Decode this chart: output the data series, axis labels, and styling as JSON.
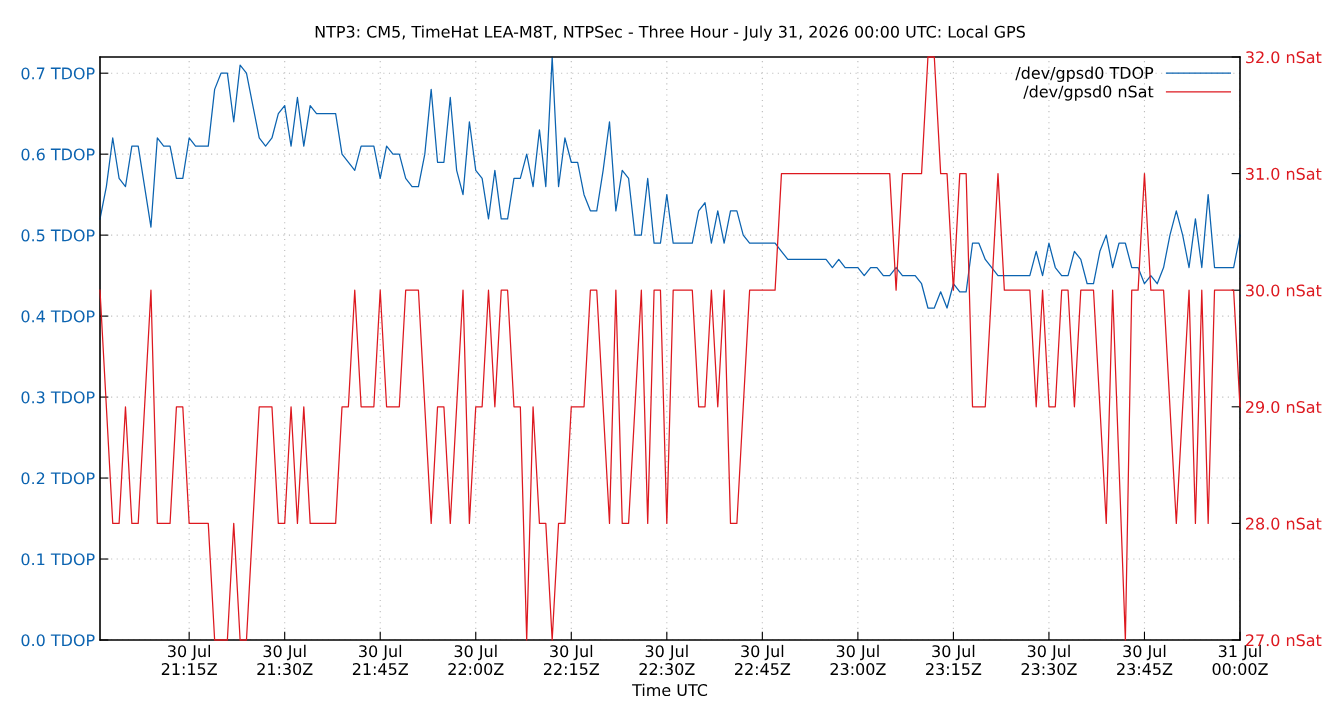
{
  "chart_data": {
    "type": "line",
    "title": "NTP3: CM5, TimeHat LEA-M8T, NTPSec - Three Hour - July 31, 2026 00:00 UTC: Local GPS",
    "xlabel": "Time UTC",
    "xlim": [
      "2026-07-30T21:01",
      "2026-07-31T00:00"
    ],
    "xticks": [
      {
        "value": "2026-07-30T21:15",
        "label": "30 Jul\n21:15Z"
      },
      {
        "value": "2026-07-30T21:30",
        "label": "30 Jul\n21:30Z"
      },
      {
        "value": "2026-07-30T21:45",
        "label": "30 Jul\n21:45Z"
      },
      {
        "value": "2026-07-30T22:00",
        "label": "30 Jul\n22:00Z"
      },
      {
        "value": "2026-07-30T22:15",
        "label": "30 Jul\n22:15Z"
      },
      {
        "value": "2026-07-30T22:30",
        "label": "30 Jul\n22:30Z"
      },
      {
        "value": "2026-07-30T22:45",
        "label": "30 Jul\n22:45Z"
      },
      {
        "value": "2026-07-30T23:00",
        "label": "30 Jul\n23:00Z"
      },
      {
        "value": "2026-07-30T23:15",
        "label": "30 Jul\n23:15Z"
      },
      {
        "value": "2026-07-30T23:30",
        "label": "30 Jul\n23:30Z"
      },
      {
        "value": "2026-07-30T23:45",
        "label": "30 Jul\n23:45Z"
      },
      {
        "value": "2026-07-31T00:00",
        "label": "31 Jul\n00:00Z"
      }
    ],
    "ylim": [
      0,
      0.72
    ],
    "yticks": [
      {
        "value": 0,
        "label": "0.0 TDOP"
      },
      {
        "value": 0.1,
        "label": "0.1 TDOP"
      },
      {
        "value": 0.2,
        "label": "0.2 TDOP"
      },
      {
        "value": 0.3,
        "label": "0.3 TDOP"
      },
      {
        "value": 0.4,
        "label": "0.4 TDOP"
      },
      {
        "value": 0.5,
        "label": "0.5 TDOP"
      },
      {
        "value": 0.6,
        "label": "0.6 TDOP"
      },
      {
        "value": 0.7,
        "label": "0.7 TDOP"
      }
    ],
    "y2lim": [
      27,
      32
    ],
    "y2ticks": [
      {
        "value": 27,
        "label": "27.0 nSat"
      },
      {
        "value": 28,
        "label": "28.0 nSat"
      },
      {
        "value": 29,
        "label": "29.0 nSat"
      },
      {
        "value": 30,
        "label": "30.0 nSat"
      },
      {
        "value": 31,
        "label": "31.0 nSat"
      },
      {
        "value": 32,
        "label": "32.0 nSat"
      }
    ],
    "grid": true,
    "legend": "top right",
    "marker": "none",
    "line_style": "solid",
    "series": [
      {
        "name": "/dev/gpsd0 TDOP",
        "color": "#0b63b0",
        "x": [
          "2026-07-30T21:01",
          "2026-07-30T21:02",
          "2026-07-30T21:03",
          "2026-07-30T21:04",
          "2026-07-30T21:05",
          "2026-07-30T21:06",
          "2026-07-30T21:07",
          "2026-07-30T21:09",
          "2026-07-30T21:10",
          "2026-07-30T21:11",
          "2026-07-30T21:12",
          "2026-07-30T21:13",
          "2026-07-30T21:14",
          "2026-07-30T21:15",
          "2026-07-30T21:16",
          "2026-07-30T21:18",
          "2026-07-30T21:19",
          "2026-07-30T21:20",
          "2026-07-30T21:21",
          "2026-07-30T21:22",
          "2026-07-30T21:23",
          "2026-07-30T21:24",
          "2026-07-30T21:25",
          "2026-07-30T21:26",
          "2026-07-30T21:27",
          "2026-07-30T21:28",
          "2026-07-30T21:29",
          "2026-07-30T21:30",
          "2026-07-30T21:31",
          "2026-07-30T21:32",
          "2026-07-30T21:33",
          "2026-07-30T21:34",
          "2026-07-30T21:35",
          "2026-07-30T21:38",
          "2026-07-30T21:39",
          "2026-07-30T21:41",
          "2026-07-30T21:42",
          "2026-07-30T21:44",
          "2026-07-30T21:45",
          "2026-07-30T21:46",
          "2026-07-30T21:47",
          "2026-07-30T21:48",
          "2026-07-30T21:49",
          "2026-07-30T21:50",
          "2026-07-30T21:51",
          "2026-07-30T21:52",
          "2026-07-30T21:53",
          "2026-07-30T21:54",
          "2026-07-30T21:55",
          "2026-07-30T21:56",
          "2026-07-30T21:57",
          "2026-07-30T21:58",
          "2026-07-30T21:59",
          "2026-07-30T22:00",
          "2026-07-30T22:01",
          "2026-07-30T22:02",
          "2026-07-30T22:03",
          "2026-07-30T22:04",
          "2026-07-30T22:05",
          "2026-07-30T22:06",
          "2026-07-30T22:07",
          "2026-07-30T22:08",
          "2026-07-30T22:09",
          "2026-07-30T22:10",
          "2026-07-30T22:11",
          "2026-07-30T22:12",
          "2026-07-30T22:13",
          "2026-07-30T22:14",
          "2026-07-30T22:15",
          "2026-07-30T22:16",
          "2026-07-30T22:17",
          "2026-07-30T22:18",
          "2026-07-30T22:19",
          "2026-07-30T22:20",
          "2026-07-30T22:21",
          "2026-07-30T22:22",
          "2026-07-30T22:23",
          "2026-07-30T22:24",
          "2026-07-30T22:25",
          "2026-07-30T22:26",
          "2026-07-30T22:27",
          "2026-07-30T22:28",
          "2026-07-30T22:29",
          "2026-07-30T22:30",
          "2026-07-30T22:31",
          "2026-07-30T22:34",
          "2026-07-30T22:35",
          "2026-07-30T22:36",
          "2026-07-30T22:37",
          "2026-07-30T22:38",
          "2026-07-30T22:39",
          "2026-07-30T22:40",
          "2026-07-30T22:41",
          "2026-07-30T22:42",
          "2026-07-30T22:43",
          "2026-07-30T22:47",
          "2026-07-30T22:48",
          "2026-07-30T22:49",
          "2026-07-30T22:55",
          "2026-07-30T22:56",
          "2026-07-30T22:57",
          "2026-07-30T22:58",
          "2026-07-30T23:00",
          "2026-07-30T23:01",
          "2026-07-30T23:02",
          "2026-07-30T23:03",
          "2026-07-30T23:04",
          "2026-07-30T23:05",
          "2026-07-30T23:06",
          "2026-07-30T23:07",
          "2026-07-30T23:09",
          "2026-07-30T23:10",
          "2026-07-30T23:11",
          "2026-07-30T23:12",
          "2026-07-30T23:13",
          "2026-07-30T23:14",
          "2026-07-30T23:15",
          "2026-07-30T23:16",
          "2026-07-30T23:17",
          "2026-07-30T23:18",
          "2026-07-30T23:19",
          "2026-07-30T23:20",
          "2026-07-30T23:22",
          "2026-07-30T23:27",
          "2026-07-30T23:28",
          "2026-07-30T23:29",
          "2026-07-30T23:30",
          "2026-07-30T23:31",
          "2026-07-30T23:32",
          "2026-07-30T23:33",
          "2026-07-30T23:34",
          "2026-07-30T23:35",
          "2026-07-30T23:36",
          "2026-07-30T23:37",
          "2026-07-30T23:38",
          "2026-07-30T23:39",
          "2026-07-30T23:40",
          "2026-07-30T23:41",
          "2026-07-30T23:42",
          "2026-07-30T23:43",
          "2026-07-30T23:44",
          "2026-07-30T23:45",
          "2026-07-30T23:46",
          "2026-07-30T23:47",
          "2026-07-30T23:48",
          "2026-07-30T23:49",
          "2026-07-30T23:50",
          "2026-07-30T23:51",
          "2026-07-30T23:52",
          "2026-07-30T23:53",
          "2026-07-30T23:54",
          "2026-07-30T23:55",
          "2026-07-30T23:56",
          "2026-07-30T23:59",
          "2026-07-31T00:00"
        ],
        "values": [
          0.52,
          0.56,
          0.62,
          0.57,
          0.56,
          0.61,
          0.61,
          0.51,
          0.62,
          0.61,
          0.61,
          0.57,
          0.57,
          0.62,
          0.61,
          0.61,
          0.68,
          0.7,
          0.7,
          0.64,
          0.71,
          0.7,
          0.66,
          0.62,
          0.61,
          0.62,
          0.65,
          0.66,
          0.61,
          0.67,
          0.61,
          0.66,
          0.65,
          0.65,
          0.6,
          0.58,
          0.61,
          0.61,
          0.57,
          0.61,
          0.6,
          0.6,
          0.57,
          0.56,
          0.56,
          0.6,
          0.68,
          0.59,
          0.59,
          0.67,
          0.58,
          0.55,
          0.64,
          0.58,
          0.57,
          0.52,
          0.58,
          0.52,
          0.52,
          0.57,
          0.57,
          0.6,
          0.56,
          0.63,
          0.56,
          0.72,
          0.56,
          0.62,
          0.59,
          0.59,
          0.55,
          0.53,
          0.53,
          0.58,
          0.64,
          0.53,
          0.58,
          0.57,
          0.5,
          0.5,
          0.57,
          0.49,
          0.49,
          0.55,
          0.49,
          0.49,
          0.53,
          0.54,
          0.49,
          0.53,
          0.49,
          0.53,
          0.53,
          0.5,
          0.49,
          0.49,
          0.48,
          0.47,
          0.47,
          0.46,
          0.47,
          0.46,
          0.46,
          0.45,
          0.46,
          0.46,
          0.45,
          0.45,
          0.46,
          0.45,
          0.45,
          0.44,
          0.41,
          0.41,
          0.43,
          0.41,
          0.44,
          0.43,
          0.43,
          0.49,
          0.49,
          0.47,
          0.45,
          0.45,
          0.48,
          0.45,
          0.49,
          0.46,
          0.45,
          0.45,
          0.48,
          0.47,
          0.44,
          0.44,
          0.48,
          0.5,
          0.46,
          0.49,
          0.49,
          0.46,
          0.46,
          0.44,
          0.45,
          0.44,
          0.46,
          0.5,
          0.53,
          0.5,
          0.46,
          0.52,
          0.46,
          0.55,
          0.46,
          0.46,
          0.5
        ]
      },
      {
        "name": "/dev/gpsd0 nSat",
        "color": "#dd181f",
        "axis": "y2",
        "x": [
          "2026-07-30T21:01",
          "2026-07-30T21:03",
          "2026-07-30T21:04",
          "2026-07-30T21:05",
          "2026-07-30T21:06",
          "2026-07-30T21:07",
          "2026-07-30T21:09",
          "2026-07-30T21:10",
          "2026-07-30T21:12",
          "2026-07-30T21:13",
          "2026-07-30T21:14",
          "2026-07-30T21:15",
          "2026-07-30T21:18",
          "2026-07-30T21:19",
          "2026-07-30T21:21",
          "2026-07-30T21:22",
          "2026-07-30T21:23",
          "2026-07-30T21:24",
          "2026-07-30T21:26",
          "2026-07-30T21:28",
          "2026-07-30T21:29",
          "2026-07-30T21:30",
          "2026-07-30T21:31",
          "2026-07-30T21:32",
          "2026-07-30T21:33",
          "2026-07-30T21:34",
          "2026-07-30T21:38",
          "2026-07-30T21:39",
          "2026-07-30T21:40",
          "2026-07-30T21:41",
          "2026-07-30T21:42",
          "2026-07-30T21:44",
          "2026-07-30T21:45",
          "2026-07-30T21:46",
          "2026-07-30T21:48",
          "2026-07-30T21:49",
          "2026-07-30T21:51",
          "2026-07-30T21:53",
          "2026-07-30T21:54",
          "2026-07-30T21:55",
          "2026-07-30T21:56",
          "2026-07-30T21:58",
          "2026-07-30T21:59",
          "2026-07-30T22:00",
          "2026-07-30T22:01",
          "2026-07-30T22:02",
          "2026-07-30T22:03",
          "2026-07-30T22:04",
          "2026-07-30T22:05",
          "2026-07-30T22:06",
          "2026-07-30T22:07",
          "2026-07-30T22:08",
          "2026-07-30T22:09",
          "2026-07-30T22:10",
          "2026-07-30T22:11",
          "2026-07-30T22:12",
          "2026-07-30T22:13",
          "2026-07-30T22:14",
          "2026-07-30T22:15",
          "2026-07-30T22:17",
          "2026-07-30T22:18",
          "2026-07-30T22:19",
          "2026-07-30T22:21",
          "2026-07-30T22:22",
          "2026-07-30T22:23",
          "2026-07-30T22:24",
          "2026-07-30T22:26",
          "2026-07-30T22:27",
          "2026-07-30T22:28",
          "2026-07-30T22:29",
          "2026-07-30T22:30",
          "2026-07-30T22:31",
          "2026-07-30T22:34",
          "2026-07-30T22:35",
          "2026-07-30T22:36",
          "2026-07-30T22:37",
          "2026-07-30T22:38",
          "2026-07-30T22:39",
          "2026-07-30T22:40",
          "2026-07-30T22:41",
          "2026-07-30T22:43",
          "2026-07-30T22:47",
          "2026-07-30T22:48",
          "2026-07-30T23:05",
          "2026-07-30T23:06",
          "2026-07-30T23:07",
          "2026-07-30T23:10",
          "2026-07-30T23:11",
          "2026-07-30T23:12",
          "2026-07-30T23:13",
          "2026-07-30T23:14",
          "2026-07-30T23:15",
          "2026-07-30T23:16",
          "2026-07-30T23:17",
          "2026-07-30T23:18",
          "2026-07-30T23:20",
          "2026-07-30T23:22",
          "2026-07-30T23:23",
          "2026-07-30T23:27",
          "2026-07-30T23:28",
          "2026-07-30T23:29",
          "2026-07-30T23:30",
          "2026-07-30T23:31",
          "2026-07-30T23:32",
          "2026-07-30T23:33",
          "2026-07-30T23:34",
          "2026-07-30T23:35",
          "2026-07-30T23:37",
          "2026-07-30T23:39",
          "2026-07-30T23:40",
          "2026-07-30T23:42",
          "2026-07-30T23:43",
          "2026-07-30T23:44",
          "2026-07-30T23:45",
          "2026-07-30T23:46",
          "2026-07-30T23:48",
          "2026-07-30T23:50",
          "2026-07-30T23:52",
          "2026-07-30T23:53",
          "2026-07-30T23:54",
          "2026-07-30T23:55",
          "2026-07-30T23:56",
          "2026-07-30T23:59",
          "2026-07-31T00:00"
        ],
        "values": [
          30,
          28,
          28,
          29,
          28,
          28,
          30,
          28,
          28,
          29,
          29,
          28,
          28,
          27,
          27,
          28,
          27,
          27,
          29,
          29,
          28,
          28,
          29,
          28,
          29,
          28,
          28,
          29,
          29,
          30,
          29,
          29,
          30,
          29,
          29,
          30,
          30,
          28,
          29,
          29,
          28,
          30,
          28,
          29,
          29,
          30,
          29,
          30,
          30,
          29,
          29,
          27,
          29,
          28,
          28,
          27,
          28,
          28,
          29,
          29,
          30,
          30,
          28,
          30,
          28,
          28,
          30,
          28,
          30,
          30,
          28,
          30,
          30,
          29,
          29,
          30,
          29,
          30,
          28,
          28,
          30,
          30,
          31,
          31,
          30,
          31,
          31,
          32,
          32,
          31,
          31,
          30,
          31,
          31,
          29,
          29,
          31,
          30,
          30,
          29,
          30,
          29,
          29,
          30,
          30,
          29,
          30,
          30,
          28,
          30,
          27,
          30,
          30,
          31,
          30,
          30,
          28,
          30,
          28,
          30,
          28,
          30,
          30,
          29
        ]
      }
    ]
  }
}
